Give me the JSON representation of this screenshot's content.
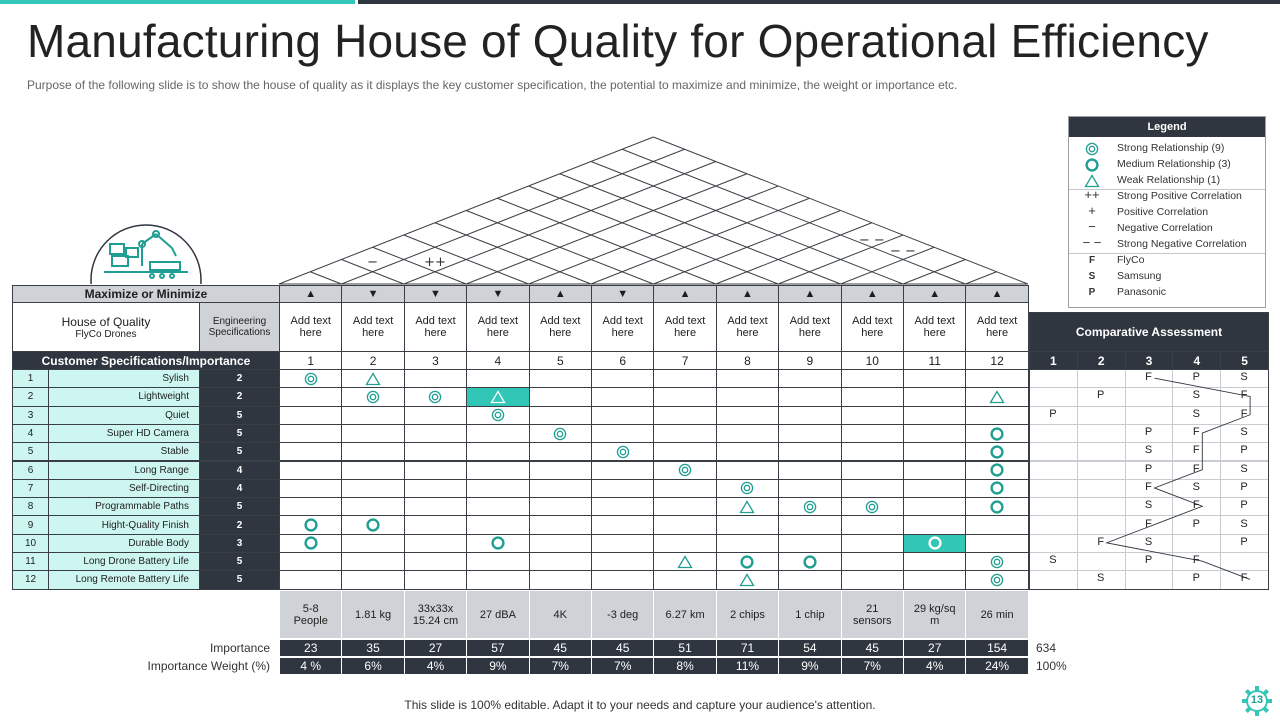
{
  "title": "Manufacturing House of Quality for Operational Efficiency",
  "subtitle": "Purpose of the following slide is to show the house of quality as it displays the key customer specification, the potential to maximize and minimize, the weight or importance etc.",
  "footer": "This slide is 100% editable. Adapt it to your needs and capture your audience's attention.",
  "page_number": "13",
  "colors": {
    "teal": "#35c6b7",
    "dark": "#2f3640",
    "mint": "#cdf6f0",
    "grey": "#cfd2d6"
  },
  "legend": {
    "title": "Legend",
    "items": [
      {
        "symbol": "strong",
        "label": "Strong Relationship (9)"
      },
      {
        "symbol": "medium",
        "label": "Medium Relationship (3)"
      },
      {
        "symbol": "weak",
        "label": "Weak Relationship (1)"
      },
      {
        "symbol": "++",
        "label": "Strong Positive Correlation"
      },
      {
        "symbol": "+",
        "label": "Positive Correlation"
      },
      {
        "symbol": "−",
        "label": "Negative Correlation"
      },
      {
        "symbol": "− −",
        "label": "Strong Negative Correlation"
      },
      {
        "symbol": "F",
        "label": "FlyCo"
      },
      {
        "symbol": "S",
        "label": "Samsung"
      },
      {
        "symbol": "P",
        "label": "Panasonic"
      }
    ]
  },
  "roof_marks": [
    "−",
    "++",
    "− −",
    "− −"
  ],
  "header": {
    "max_min_label": "Maximize or Minimize",
    "directions": [
      "▲",
      "▼",
      "▼",
      "▼",
      "▲",
      "▼",
      "▲",
      "▲",
      "▲",
      "▲",
      "▲",
      "▲"
    ],
    "hoq_title": "House of Quality",
    "hoq_subtitle": "FlyCo Drones",
    "eng_specs_label": "Engineering Specifications",
    "spec_label": "Add text here",
    "comparative_label": "Comparative Assessment",
    "cust_spec_label": "Customer Specifications/Importance",
    "col_numbers": [
      "1",
      "2",
      "3",
      "4",
      "5",
      "6",
      "7",
      "8",
      "9",
      "10",
      "11",
      "12"
    ],
    "ca_numbers": [
      "1",
      "2",
      "3",
      "4",
      "5"
    ]
  },
  "rows": [
    {
      "num": "1",
      "name": "Sylish",
      "importance": "2"
    },
    {
      "num": "2",
      "name": "Lightweight",
      "importance": "2"
    },
    {
      "num": "3",
      "name": "Quiet",
      "importance": "5"
    },
    {
      "num": "4",
      "name": "Super HD Camera",
      "importance": "5"
    },
    {
      "num": "5",
      "name": "Stable",
      "importance": "5"
    },
    {
      "num": "6",
      "name": "Long Range",
      "importance": "4"
    },
    {
      "num": "7",
      "name": "Self-Directing",
      "importance": "4"
    },
    {
      "num": "8",
      "name": "Programmable Paths",
      "importance": "5"
    },
    {
      "num": "9",
      "name": "Hight-Quality Finish",
      "importance": "2"
    },
    {
      "num": "10",
      "name": "Durable Body",
      "importance": "3"
    },
    {
      "num": "11",
      "name": "Long Drone Battery Life",
      "importance": "5"
    },
    {
      "num": "12",
      "name": "Long Remote Battery Life",
      "importance": "5"
    }
  ],
  "relationships": [
    {
      "row": 1,
      "col": 1,
      "type": "strong"
    },
    {
      "row": 1,
      "col": 2,
      "type": "weak"
    },
    {
      "row": 2,
      "col": 2,
      "type": "strong"
    },
    {
      "row": 2,
      "col": 3,
      "type": "strong"
    },
    {
      "row": 2,
      "col": 4,
      "type": "weak",
      "highlight": true
    },
    {
      "row": 2,
      "col": 12,
      "type": "weak"
    },
    {
      "row": 3,
      "col": 4,
      "type": "strong"
    },
    {
      "row": 4,
      "col": 5,
      "type": "strong"
    },
    {
      "row": 4,
      "col": 12,
      "type": "medium"
    },
    {
      "row": 5,
      "col": 6,
      "type": "strong"
    },
    {
      "row": 5,
      "col": 12,
      "type": "medium"
    },
    {
      "row": 6,
      "col": 7,
      "type": "strong"
    },
    {
      "row": 6,
      "col": 12,
      "type": "medium"
    },
    {
      "row": 7,
      "col": 8,
      "type": "strong"
    },
    {
      "row": 7,
      "col": 12,
      "type": "medium"
    },
    {
      "row": 8,
      "col": 8,
      "type": "weak"
    },
    {
      "row": 8,
      "col": 9,
      "type": "strong"
    },
    {
      "row": 8,
      "col": 10,
      "type": "strong"
    },
    {
      "row": 8,
      "col": 12,
      "type": "medium"
    },
    {
      "row": 9,
      "col": 1,
      "type": "medium"
    },
    {
      "row": 9,
      "col": 2,
      "type": "medium"
    },
    {
      "row": 10,
      "col": 1,
      "type": "medium"
    },
    {
      "row": 10,
      "col": 4,
      "type": "medium"
    },
    {
      "row": 10,
      "col": 11,
      "type": "medium",
      "highlight": true
    },
    {
      "row": 11,
      "col": 7,
      "type": "weak"
    },
    {
      "row": 11,
      "col": 8,
      "type": "medium"
    },
    {
      "row": 11,
      "col": 9,
      "type": "medium"
    },
    {
      "row": 11,
      "col": 12,
      "type": "strong"
    },
    {
      "row": 12,
      "col": 8,
      "type": "weak"
    },
    {
      "row": 12,
      "col": 12,
      "type": "strong"
    }
  ],
  "comparative": [
    {
      "row": 1,
      "F": 3,
      "S": 5,
      "P": 4
    },
    {
      "row": 2,
      "F": 5,
      "S": 4,
      "P": 2
    },
    {
      "row": 3,
      "F": 5,
      "S": 4,
      "P": 1
    },
    {
      "row": 4,
      "F": 4,
      "S": 5,
      "P": 3
    },
    {
      "row": 5,
      "F": 4,
      "S": 3,
      "P": 5
    },
    {
      "row": 6,
      "F": 4,
      "S": 5,
      "P": 3
    },
    {
      "row": 7,
      "F": 3,
      "S": 4,
      "P": 5
    },
    {
      "row": 8,
      "F": 4,
      "S": 3,
      "P": 5
    },
    {
      "row": 9,
      "F": 3,
      "S": 5,
      "P": 4
    },
    {
      "row": 10,
      "F": 2,
      "S": 3,
      "P": 5
    },
    {
      "row": 11,
      "F": 4,
      "S": 1,
      "P": 3
    },
    {
      "row": 12,
      "F": 5,
      "S": 2,
      "P": 4
    }
  ],
  "targets": [
    "5-8 People",
    "1.81 kg",
    "33x33x 15.24 cm",
    "27 dBA",
    "4K",
    "-3 deg",
    "6.27 km",
    "2 chips",
    "1 chip",
    "21 sensors",
    "29 kg/sq m",
    "26 min"
  ],
  "importance": {
    "label": "Importance",
    "values": [
      "23",
      "35",
      "27",
      "57",
      "45",
      "45",
      "51",
      "71",
      "54",
      "45",
      "27",
      "154"
    ],
    "total": "634"
  },
  "weight": {
    "label": "Importance Weight (%)",
    "values": [
      "4 %",
      "6%",
      "4%",
      "9%",
      "7%",
      "7%",
      "8%",
      "11%",
      "9%",
      "7%",
      "4%",
      "24%"
    ],
    "total": "100%"
  }
}
